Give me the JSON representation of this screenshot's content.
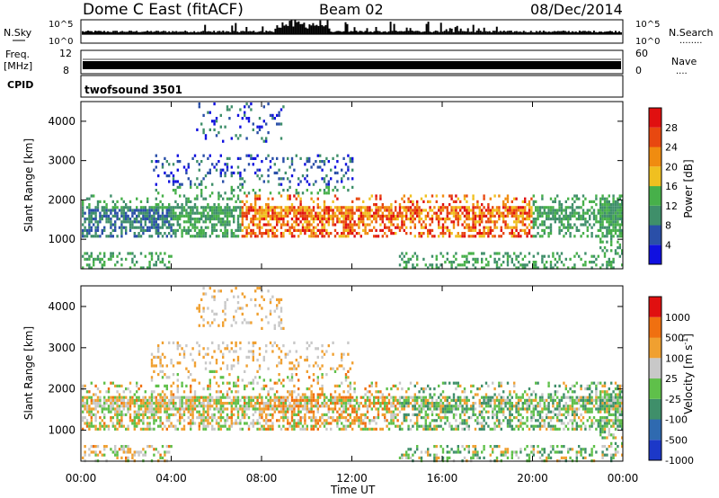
{
  "header": {
    "title": "Dome C East (fitACF)",
    "beam": "Beam 02",
    "date": "08/Dec/2014"
  },
  "strip_labels": {
    "nsky": "N.Sky",
    "nsearch": "N.Search",
    "freq": "Freq.",
    "mhz": "[MHz]",
    "nave": "Nave",
    "cpid": "CPID",
    "dots1": "........",
    "dots2": "....",
    "nsky_ticks": [
      "10^5",
      "10^0"
    ],
    "freq_ticks": [
      "12",
      "8"
    ],
    "nave_ticks": [
      "60",
      "0"
    ]
  },
  "cpid_text": "twofsound 3501",
  "chart_data": [
    {
      "type": "heatmap",
      "name": "power",
      "ylabel": "Slant Range [km]",
      "ylim": [
        250,
        4500
      ],
      "yticks": [
        "1000",
        "2000",
        "3000",
        "4000"
      ],
      "xlim": [
        "00:00",
        "24:00"
      ],
      "colorbar_label": "Power [dB]",
      "colorbar_ticks": [
        "28",
        "24",
        "20",
        "16",
        "12",
        "8",
        "4"
      ],
      "colors": [
        "#1010e0",
        "#2a4fa8",
        "#3f8f6a",
        "#47b04a",
        "#f0c020",
        "#f08c10",
        "#e84810",
        "#e01010"
      ]
    },
    {
      "type": "heatmap",
      "name": "velocity",
      "ylabel": "Slant Range [km]",
      "ylim": [
        250,
        4500
      ],
      "yticks": [
        "1000",
        "2000",
        "3000",
        "4000"
      ],
      "xlim": [
        "00:00",
        "24:00"
      ],
      "colorbar_label": "Velocity [m s",
      "colorbar_sup": "-1",
      "colorbar_close": "]",
      "colorbar_ticks": [
        "1000",
        "500",
        "100",
        "25",
        "-25",
        "-100",
        "-500",
        "-1000"
      ],
      "colors": [
        "#1c38c8",
        "#2f6ab0",
        "#3f8f6a",
        "#5fc04a",
        "#c8c8c8",
        "#f0a030",
        "#f07010",
        "#e01010"
      ]
    }
  ],
  "x_axis": {
    "label": "Time UT",
    "ticks": [
      "00:00",
      "04:00",
      "08:00",
      "12:00",
      "16:00",
      "20:00",
      "00:00"
    ]
  }
}
